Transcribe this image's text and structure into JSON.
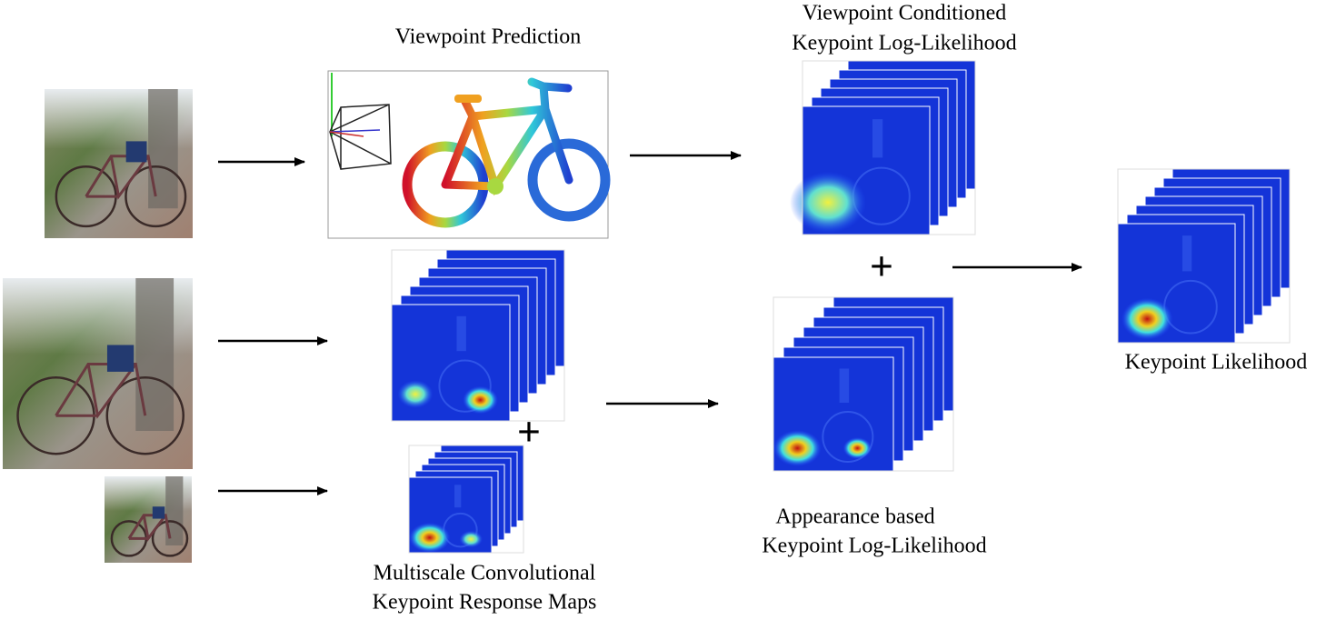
{
  "viewpoint_prediction": {
    "label": [
      "Viewpoint Prediction"
    ]
  },
  "viewpoint_conditioned": {
    "label": [
      "Viewpoint Conditioned",
      "Keypoint Log-Likelihood"
    ]
  },
  "multiscale_response": {
    "label": [
      "Multiscale Convolutional",
      "Keypoint Response Maps"
    ]
  },
  "appearance_based": {
    "label": [
      "Appearance based",
      "Keypoint Log-Likelihood"
    ]
  },
  "keypoint_likelihood": {
    "label": [
      "Keypoint Likelihood"
    ]
  },
  "operators": [
    "+",
    "+"
  ]
}
